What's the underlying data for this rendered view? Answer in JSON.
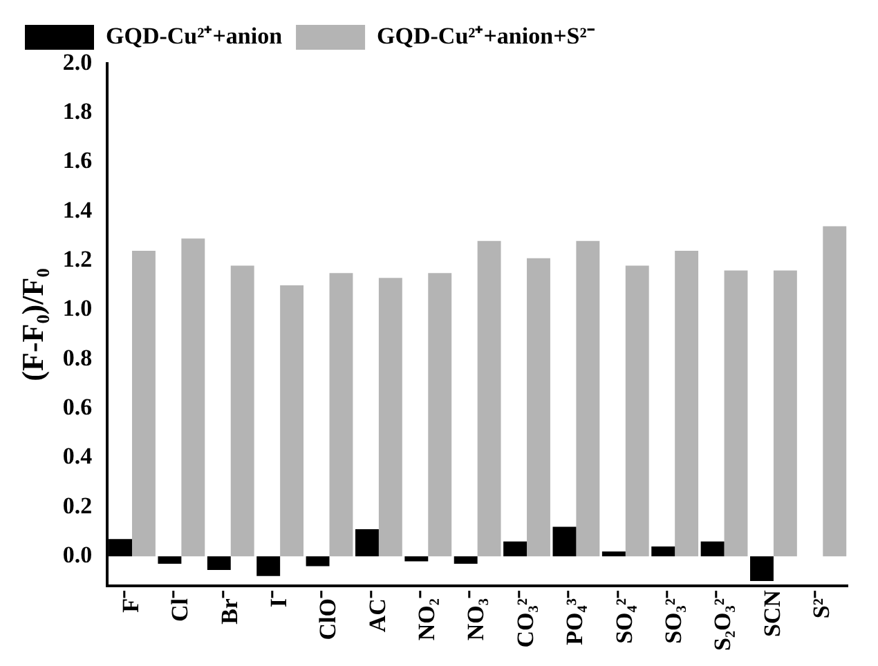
{
  "chart_data": {
    "type": "bar",
    "ylabel": "(F-F₀)/F₀",
    "categories": [
      "F⁻",
      "Cl⁻",
      "Br⁻",
      "I⁻",
      "ClO⁻",
      "AC⁻",
      "NO₂⁻",
      "NO₃⁻",
      "CO₃²⁻",
      "PO₄³⁻",
      "SO₄²⁻",
      "SO₃²⁻",
      "S₂O₃²⁻",
      "SCN",
      "S²⁻"
    ],
    "series": [
      {
        "name": "GQD-Cu²⁺+anion",
        "color": "#000000",
        "values": [
          0.07,
          -0.03,
          -0.055,
          -0.08,
          -0.04,
          0.11,
          -0.02,
          -0.03,
          0.06,
          0.12,
          0.02,
          0.04,
          0.06,
          -0.1,
          null
        ]
      },
      {
        "name": "GQD-Cu²⁺+anion+S²⁻",
        "color": "#b4b4b4",
        "values": [
          1.24,
          1.29,
          1.18,
          1.1,
          1.15,
          1.13,
          1.15,
          1.28,
          1.21,
          1.28,
          1.18,
          1.24,
          1.16,
          1.16,
          1.34
        ]
      }
    ],
    "ylim": [
      -0.12,
      2.0
    ],
    "yticks": [
      {
        "value": 0,
        "label": "0.0"
      },
      {
        "value": 0.2,
        "label": "0.2"
      },
      {
        "value": 0.4,
        "label": "0.4"
      },
      {
        "value": 0.6,
        "label": "0.6"
      },
      {
        "value": 0.8,
        "label": "0.8"
      },
      {
        "value": 1,
        "label": "1.0"
      },
      {
        "value": 1.2,
        "label": "1.2"
      },
      {
        "value": 1.4,
        "label": "1.4"
      },
      {
        "value": 1.6,
        "label": "1.6"
      },
      {
        "value": 1.8,
        "label": "1.8"
      },
      {
        "value": 2,
        "label": "2.0"
      }
    ],
    "grid": false,
    "legend": "top left"
  }
}
